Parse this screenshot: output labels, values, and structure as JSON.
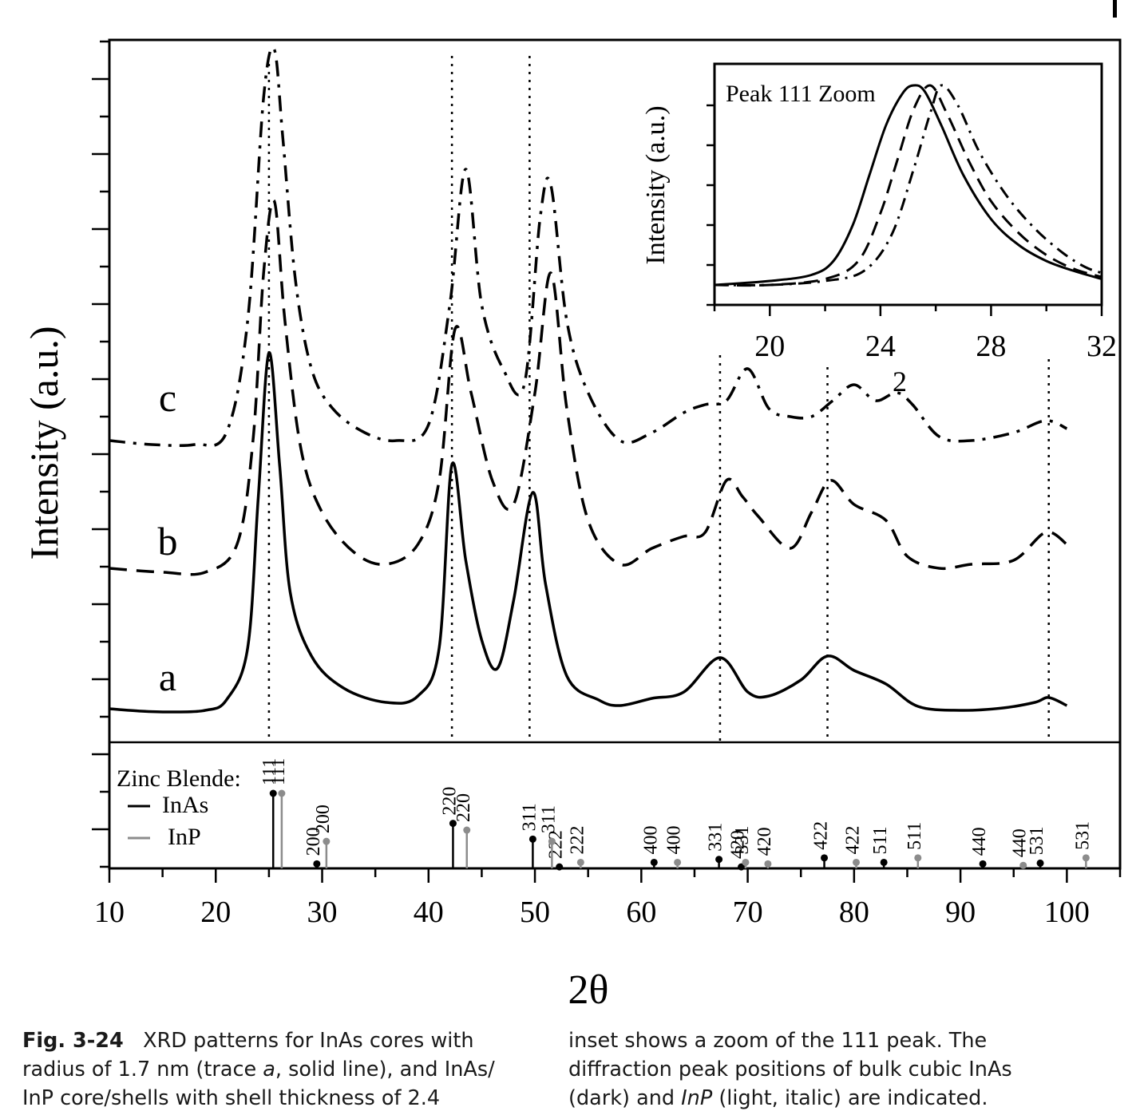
{
  "chart_data": {
    "type": "line",
    "xlabel": "2θ",
    "ylabel": "Intensity (a.u.)",
    "xlim": [
      10,
      105
    ],
    "x_ticks": [
      10,
      20,
      30,
      40,
      50,
      60,
      70,
      80,
      90,
      100
    ],
    "y_tick_labels": "none",
    "series": [
      {
        "name": "a",
        "style": "solid",
        "x": [
          10,
          13,
          16,
          19,
          21,
          23,
          24,
          25,
          26,
          27,
          29,
          32,
          36,
          39,
          41,
          42.2,
          43.5,
          45,
          46.5,
          48,
          49.8,
          51,
          53,
          56,
          58,
          61,
          64,
          67.4,
          70,
          72,
          75,
          77.5,
          80,
          83,
          86,
          90,
          94,
          97,
          98.3,
          100
        ],
        "y": [
          0.14,
          0.11,
          0.1,
          0.12,
          0.25,
          0.9,
          2.8,
          4.6,
          3.2,
          1.6,
          0.8,
          0.4,
          0.22,
          0.3,
          0.9,
          3.2,
          2.0,
          1.0,
          0.65,
          1.5,
          2.85,
          1.7,
          0.55,
          0.25,
          0.18,
          0.27,
          0.35,
          0.78,
          0.35,
          0.3,
          0.5,
          0.8,
          0.62,
          0.45,
          0.17,
          0.12,
          0.15,
          0.22,
          0.28,
          0.18
        ]
      },
      {
        "name": "b",
        "style": "dashed",
        "x": [
          10,
          15,
          19,
          22,
          23.5,
          24.5,
          25.5,
          26.5,
          28,
          30,
          33,
          36,
          39,
          41,
          42.5,
          44,
          46,
          48,
          50,
          51.5,
          53,
          55,
          58,
          61,
          64,
          66,
          68,
          69.5,
          71,
          74,
          76,
          77.8,
          80,
          83,
          85,
          88,
          91,
          95,
          98,
          100
        ],
        "y": [
          1.9,
          1.85,
          1.85,
          2.2,
          3.5,
          5.6,
          6.5,
          5.0,
          3.4,
          2.6,
          2.1,
          1.95,
          2.2,
          3.0,
          4.9,
          4.1,
          3.0,
          2.7,
          4.1,
          5.6,
          3.9,
          2.5,
          1.95,
          2.15,
          2.3,
          2.35,
          3.0,
          2.8,
          2.55,
          2.15,
          2.6,
          3.0,
          2.7,
          2.5,
          2.05,
          1.9,
          1.95,
          2.0,
          2.35,
          2.2
        ]
      },
      {
        "name": "c",
        "style": "dash-dot",
        "x": [
          10,
          14,
          18,
          21,
          23,
          24.5,
          25.5,
          26.3,
          27.5,
          29,
          31,
          34,
          37,
          40,
          42,
          43.5,
          45,
          47,
          49,
          50.5,
          51.5,
          53,
          55,
          58,
          61,
          64,
          66,
          68,
          70,
          72,
          74,
          76,
          78,
          80,
          82,
          84,
          85.5,
          88,
          91,
          95,
          98,
          100
        ],
        "y": [
          3.5,
          3.45,
          3.45,
          3.6,
          5.0,
          7.8,
          8.4,
          7.3,
          5.5,
          4.4,
          3.9,
          3.6,
          3.5,
          3.7,
          5.2,
          6.9,
          5.2,
          4.4,
          4.2,
          6.3,
          6.7,
          5.0,
          4.1,
          3.5,
          3.6,
          3.85,
          3.95,
          4.0,
          4.4,
          3.9,
          3.8,
          3.8,
          4.0,
          4.2,
          4.0,
          4.1,
          3.95,
          3.55,
          3.5,
          3.6,
          3.75,
          3.65
        ]
      }
    ],
    "peak_guides_x": [
      25.0,
      42.2,
      49.5,
      67.4,
      77.5,
      98.3
    ],
    "trace_labels": [
      "a",
      "b",
      "c"
    ],
    "reference": {
      "title": "Zinc Blende:",
      "legend": [
        {
          "name": "InAs",
          "color": "#000000"
        },
        {
          "name": "InP",
          "color": "#8c8c8c"
        }
      ],
      "InAs": [
        {
          "hkl": "111",
          "x": 25.4,
          "rel": 100
        },
        {
          "hkl": "200",
          "x": 29.5,
          "rel": 6
        },
        {
          "hkl": "220",
          "x": 42.3,
          "rel": 60
        },
        {
          "hkl": "311",
          "x": 49.8,
          "rel": 39
        },
        {
          "hkl": "222",
          "x": 52.3,
          "rel": 2
        },
        {
          "hkl": "400",
          "x": 61.2,
          "rel": 8
        },
        {
          "hkl": "331",
          "x": 67.3,
          "rel": 12
        },
        {
          "hkl": "420",
          "x": 69.4,
          "rel": 2
        },
        {
          "hkl": "422",
          "x": 77.2,
          "rel": 14
        },
        {
          "hkl": "511",
          "x": 82.8,
          "rel": 8
        },
        {
          "hkl": "440",
          "x": 92.1,
          "rel": 6
        },
        {
          "hkl": "531",
          "x": 97.5,
          "rel": 7
        }
      ],
      "InP": [
        {
          "hkl": "111",
          "x": 26.2,
          "rel": 100
        },
        {
          "hkl": "200",
          "x": 30.4,
          "rel": 36
        },
        {
          "hkl": "220",
          "x": 43.6,
          "rel": 51
        },
        {
          "hkl": "311",
          "x": 51.6,
          "rel": 36
        },
        {
          "hkl": "222",
          "x": 54.3,
          "rel": 8
        },
        {
          "hkl": "400",
          "x": 63.4,
          "rel": 8
        },
        {
          "hkl": "331",
          "x": 69.8,
          "rel": 8
        },
        {
          "hkl": "420",
          "x": 71.9,
          "rel": 6
        },
        {
          "hkl": "422",
          "x": 80.2,
          "rel": 8
        },
        {
          "hkl": "511",
          "x": 86.0,
          "rel": 14
        },
        {
          "hkl": "440",
          "x": 95.9,
          "rel": 4
        },
        {
          "hkl": "531",
          "x": 101.8,
          "rel": 14
        }
      ]
    },
    "inset": {
      "title": "Peak 111 Zoom",
      "xlabel": "2",
      "ylabel": "Intensity (a.u.)",
      "xlim": [
        18,
        32
      ],
      "x_ticks": [
        20,
        24,
        28,
        32
      ],
      "series": [
        {
          "name": "a",
          "style": "solid",
          "x": [
            18,
            20,
            21.5,
            22.3,
            23,
            23.6,
            24.2,
            24.8,
            25.2,
            25.6,
            26.2,
            27,
            28,
            29,
            30,
            31,
            32
          ],
          "y": [
            0.0,
            0.02,
            0.05,
            0.12,
            0.3,
            0.55,
            0.8,
            0.96,
            1.0,
            0.97,
            0.8,
            0.55,
            0.33,
            0.2,
            0.12,
            0.07,
            0.03
          ]
        },
        {
          "name": "b",
          "style": "dashed",
          "x": [
            18,
            20,
            22,
            23.2,
            24,
            24.6,
            25.2,
            25.8,
            26.4,
            27.2,
            28,
            29,
            30,
            31,
            32
          ],
          "y": [
            0.0,
            0.0,
            0.03,
            0.12,
            0.36,
            0.62,
            0.88,
            1.0,
            0.86,
            0.62,
            0.42,
            0.26,
            0.15,
            0.08,
            0.04
          ]
        },
        {
          "name": "c",
          "style": "dash-dot",
          "x": [
            18,
            20,
            22,
            23.4,
            24.4,
            25.2,
            25.8,
            26.2,
            26.8,
            27.6,
            28.6,
            29.6,
            30.6,
            31.4,
            32
          ],
          "y": [
            0.0,
            0.0,
            0.02,
            0.07,
            0.25,
            0.58,
            0.86,
            1.0,
            0.9,
            0.66,
            0.44,
            0.28,
            0.16,
            0.09,
            0.06
          ]
        }
      ]
    }
  },
  "caption": {
    "fig_label": "Fig. 3-24",
    "left_lines": [
      "XRD patterns for InAs cores with",
      "radius of 1.7 nm (trace ",
      "InP core/shells with shell thickness of 2.4"
    ],
    "left_line2_italic": "a",
    "left_line2_tail": ", solid line), and InAs/",
    "right_line1": "inset shows a zoom of the 111 peak. The",
    "right_line2": "diffraction peak positions of bulk cubic InAs",
    "right_line3_a": "(dark) and ",
    "right_line3_italic": "InP",
    "right_line3_b": " (light, italic) are indicated."
  }
}
